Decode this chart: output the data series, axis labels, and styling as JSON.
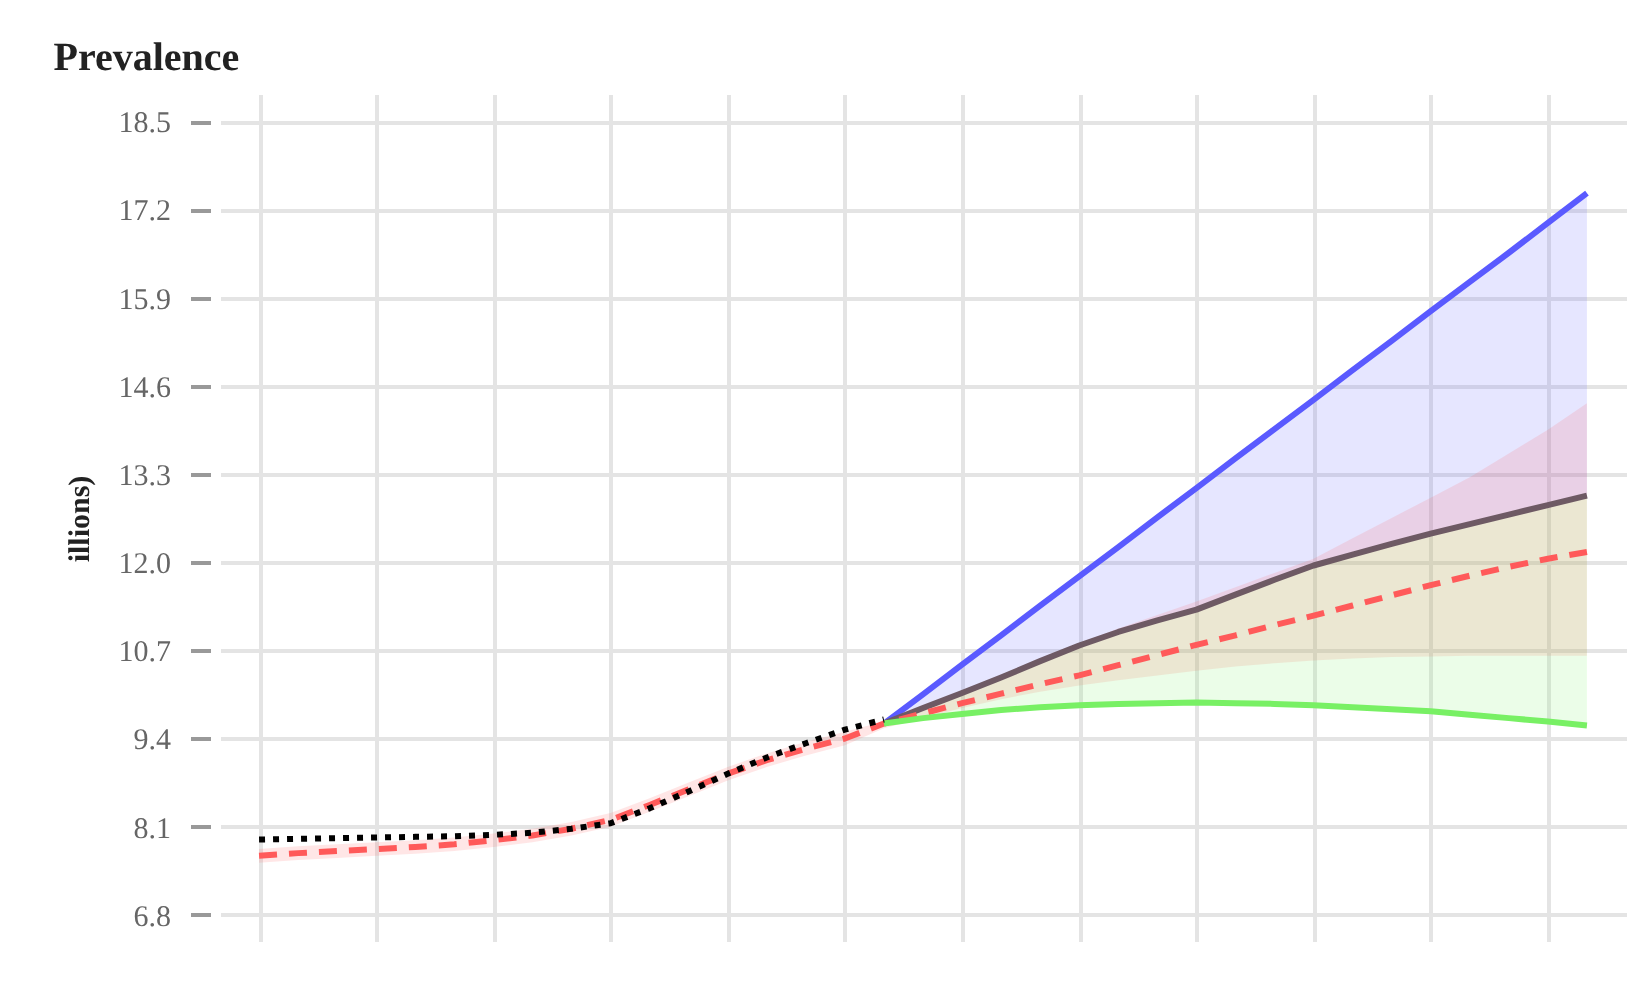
{
  "chart_data": {
    "type": "line",
    "title": "Prevalence",
    "ylabel": "illions)",
    "categories": [
      null,
      null,
      null,
      null,
      null,
      null,
      null,
      null,
      null,
      null,
      null,
      null,
      null,
      null,
      null,
      null,
      null,
      null,
      null,
      null,
      null,
      null,
      null,
      null,
      null,
      null,
      null,
      null,
      null,
      null,
      null,
      null,
      null,
      null,
      null
    ],
    "series": [
      {
        "color": "#5a5aff",
        "line_style": "solid",
        "values": [
          null,
          null,
          null,
          null,
          null,
          null,
          null,
          null,
          null,
          null,
          null,
          null,
          null,
          null,
          null,
          null,
          9.62,
          10.05,
          10.49,
          10.92,
          11.36,
          11.79,
          12.22,
          12.66,
          13.09,
          13.53,
          13.96,
          14.39,
          14.83,
          15.26,
          15.7,
          16.13,
          16.56,
          17.0,
          17.44
        ],
        "lower": [
          null,
          null,
          null,
          null,
          null,
          null,
          null,
          null,
          null,
          null,
          null,
          null,
          null,
          null,
          null,
          null,
          9.62,
          9.85,
          10.07,
          10.3,
          10.54,
          10.77,
          10.97,
          11.14,
          11.3,
          11.52,
          11.74,
          11.95,
          12.11,
          12.27,
          12.42,
          12.56,
          12.7,
          12.84,
          12.98
        ],
        "upper": [
          null,
          null,
          null,
          null,
          null,
          null,
          null,
          null,
          null,
          null,
          null,
          null,
          null,
          null,
          null,
          null,
          9.62,
          10.05,
          10.49,
          10.92,
          11.36,
          11.79,
          12.22,
          12.66,
          13.09,
          13.53,
          13.96,
          14.39,
          14.83,
          15.26,
          15.7,
          16.13,
          16.56,
          17.0,
          17.44
        ]
      },
      {
        "color": "#6e5a64",
        "line_style": "solid",
        "values": [
          null,
          null,
          null,
          null,
          null,
          null,
          null,
          null,
          null,
          null,
          null,
          null,
          null,
          null,
          null,
          null,
          9.62,
          9.85,
          10.07,
          10.3,
          10.54,
          10.77,
          10.97,
          11.14,
          11.3,
          11.52,
          11.74,
          11.95,
          12.11,
          12.27,
          12.42,
          12.56,
          12.7,
          12.84,
          12.98
        ]
      },
      {
        "color": "#ff5a5a",
        "line_style": "dashed",
        "values": [
          7.67,
          7.71,
          7.74,
          7.77,
          7.8,
          7.84,
          7.9,
          7.97,
          8.07,
          8.2,
          8.42,
          8.65,
          8.88,
          9.08,
          9.25,
          9.4,
          9.62,
          9.77,
          9.92,
          10.06,
          10.2,
          10.33,
          10.48,
          10.63,
          10.78,
          10.92,
          11.07,
          11.21,
          11.36,
          11.51,
          11.66,
          11.8,
          11.93,
          12.05,
          12.15
        ],
        "lower": [
          7.57,
          7.61,
          7.64,
          7.67,
          7.7,
          7.74,
          7.8,
          7.87,
          7.97,
          8.1,
          8.32,
          8.55,
          8.78,
          8.98,
          9.15,
          9.3,
          9.55,
          9.7,
          9.85,
          9.98,
          10.09,
          10.18,
          10.26,
          10.33,
          10.4,
          10.46,
          10.51,
          10.55,
          10.58,
          10.6,
          10.61,
          10.62,
          10.62,
          10.62,
          10.62
        ],
        "upper": [
          7.77,
          7.81,
          7.84,
          7.87,
          7.9,
          7.94,
          8.0,
          8.07,
          8.17,
          8.3,
          8.52,
          8.75,
          8.98,
          9.18,
          9.35,
          9.5,
          9.65,
          9.87,
          10.1,
          10.33,
          10.56,
          10.8,
          11.02,
          11.22,
          11.42,
          11.63,
          11.84,
          12.05,
          12.35,
          12.65,
          12.95,
          13.25,
          13.6,
          13.95,
          14.34
        ]
      },
      {
        "color": "#78f064",
        "line_style": "solid",
        "values": [
          null,
          null,
          null,
          null,
          null,
          null,
          null,
          null,
          null,
          null,
          null,
          null,
          null,
          null,
          null,
          null,
          9.62,
          9.7,
          9.76,
          9.82,
          9.86,
          9.89,
          9.91,
          9.92,
          9.93,
          9.92,
          9.91,
          9.89,
          9.86,
          9.83,
          9.8,
          9.75,
          9.7,
          9.65,
          9.59
        ],
        "lower": [
          null,
          null,
          null,
          null,
          null,
          null,
          null,
          null,
          null,
          null,
          null,
          null,
          null,
          null,
          null,
          null,
          9.62,
          9.7,
          9.76,
          9.82,
          9.86,
          9.89,
          9.91,
          9.92,
          9.93,
          9.92,
          9.91,
          9.89,
          9.86,
          9.83,
          9.8,
          9.75,
          9.7,
          9.65,
          9.59
        ],
        "upper": [
          null,
          null,
          null,
          null,
          null,
          null,
          null,
          null,
          null,
          null,
          null,
          null,
          null,
          null,
          null,
          null,
          9.62,
          9.85,
          10.07,
          10.3,
          10.54,
          10.77,
          10.97,
          11.14,
          11.3,
          11.52,
          11.74,
          11.95,
          12.11,
          12.27,
          12.42,
          12.56,
          12.7,
          12.84,
          12.98
        ]
      },
      {
        "color": "#000000",
        "line_style": "dotted",
        "values": [
          7.91,
          7.92,
          7.93,
          7.94,
          7.95,
          7.96,
          7.98,
          8.01,
          8.07,
          8.15,
          8.37,
          8.62,
          8.88,
          9.12,
          9.33,
          9.53,
          9.68,
          null,
          null,
          null,
          null,
          null,
          null,
          null,
          null,
          null,
          null,
          null,
          null,
          null,
          null,
          null,
          null,
          null,
          null
        ]
      }
    ],
    "ylim": [
      6.4,
      18.9
    ],
    "yticks": [
      6.8,
      8.1,
      9.4,
      10.7,
      {
        "value": 12.0,
        "label": "12.0"
      },
      13.3,
      14.6,
      15.9,
      17.2,
      18.5
    ],
    "tick_labels": "y",
    "grid": true
  }
}
